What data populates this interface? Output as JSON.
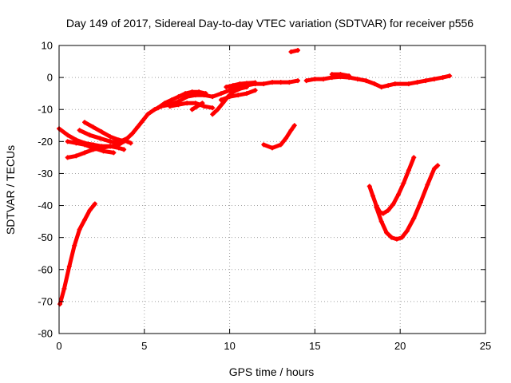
{
  "chart_data": {
    "type": "scatter",
    "title": "Day 149 of 2017, Sidereal Day-to-day VTEC variation (SDTVAR) for receiver p556",
    "xlabel": "GPS time / hours",
    "ylabel": "SDTVAR / TECUs",
    "xlim": [
      0,
      25
    ],
    "ylim": [
      -80,
      10
    ],
    "x_ticks": [
      0,
      5,
      10,
      15,
      20,
      25
    ],
    "y_ticks": [
      10,
      0,
      -10,
      -20,
      -30,
      -40,
      -50,
      -60,
      -70,
      -80
    ],
    "grid": true,
    "grid_style": "dotted",
    "legend": "none",
    "series": [
      {
        "color": "#ff0000",
        "segments": [
          [
            [
              0.05,
              -70.8
            ],
            [
              0.3,
              -66
            ],
            [
              0.6,
              -59
            ],
            [
              0.9,
              -52.5
            ],
            [
              1.2,
              -47.5
            ],
            [
              1.5,
              -44.5
            ],
            [
              1.8,
              -41.5
            ],
            [
              2.1,
              -39.5
            ]
          ],
          [
            [
              0.0,
              -16
            ],
            [
              0.5,
              -18
            ],
            [
              1.0,
              -19.5
            ],
            [
              1.5,
              -20.5
            ],
            [
              2.0,
              -21
            ],
            [
              2.5,
              -21.5
            ],
            [
              3.0,
              -21.5
            ],
            [
              3.5,
              -21
            ],
            [
              3.8,
              -20
            ]
          ],
          [
            [
              0.5,
              -20
            ],
            [
              1.0,
              -20.5
            ],
            [
              1.5,
              -21
            ],
            [
              2.0,
              -22
            ],
            [
              2.6,
              -23
            ],
            [
              3.2,
              -23.5
            ]
          ],
          [
            [
              0.5,
              -25
            ],
            [
              1.0,
              -24.5
            ],
            [
              1.5,
              -23.5
            ],
            [
              2.0,
              -22.5
            ],
            [
              2.5,
              -22
            ],
            [
              3.0,
              -21.5
            ],
            [
              3.5,
              -22
            ],
            [
              3.8,
              -22.5
            ]
          ],
          [
            [
              1.5,
              -14
            ],
            [
              2.0,
              -15.5
            ],
            [
              2.5,
              -17
            ],
            [
              3.0,
              -18.5
            ],
            [
              3.5,
              -19.5
            ],
            [
              4.0,
              -20
            ],
            [
              4.2,
              -20.5
            ]
          ],
          [
            [
              1.2,
              -16.5
            ],
            [
              1.8,
              -18
            ],
            [
              2.4,
              -19
            ],
            [
              3.0,
              -20
            ],
            [
              3.6,
              -20.5
            ]
          ],
          [
            [
              3.6,
              -20
            ],
            [
              4.0,
              -19
            ],
            [
              4.3,
              -17.5
            ],
            [
              4.6,
              -15.5
            ],
            [
              4.9,
              -13.5
            ],
            [
              5.2,
              -11.5
            ],
            [
              5.6,
              -10
            ],
            [
              6.0,
              -9
            ],
            [
              6.5,
              -8.5
            ],
            [
              7.0,
              -7.5
            ],
            [
              7.5,
              -6
            ],
            [
              8.0,
              -5.5
            ],
            [
              8.5,
              -5.5
            ],
            [
              9.0,
              -6
            ],
            [
              9.5,
              -5
            ],
            [
              10.0,
              -4
            ],
            [
              10.5,
              -3
            ],
            [
              11.0,
              -2.5
            ],
            [
              11.5,
              -2
            ],
            [
              12.0,
              -2
            ],
            [
              12.5,
              -1.5
            ],
            [
              13.0,
              -1.5
            ],
            [
              13.5,
              -1.5
            ],
            [
              14.0,
              -1
            ]
          ],
          [
            [
              5.8,
              -9.5
            ],
            [
              6.2,
              -8
            ],
            [
              6.6,
              -7
            ],
            [
              7.0,
              -6
            ],
            [
              7.4,
              -5
            ],
            [
              7.8,
              -4.5
            ],
            [
              8.2,
              -4.5
            ],
            [
              8.6,
              -5
            ]
          ],
          [
            [
              6.5,
              -9
            ],
            [
              7.0,
              -8.5
            ],
            [
              7.5,
              -8
            ],
            [
              8.0,
              -8
            ],
            [
              8.5,
              -9
            ],
            [
              9.0,
              -9.5
            ]
          ],
          [
            [
              7.8,
              -10
            ],
            [
              8.1,
              -9
            ],
            [
              8.4,
              -8
            ]
          ],
          [
            [
              9.0,
              -11.5
            ],
            [
              9.3,
              -10
            ],
            [
              9.6,
              -8
            ],
            [
              9.9,
              -6
            ],
            [
              10.2,
              -4.5
            ],
            [
              10.6,
              -3.5
            ],
            [
              11.0,
              -3
            ]
          ],
          [
            [
              9.5,
              -7
            ],
            [
              10.0,
              -6
            ],
            [
              10.5,
              -5.5
            ],
            [
              11.0,
              -5
            ],
            [
              11.5,
              -4
            ]
          ],
          [
            [
              9.8,
              -3
            ],
            [
              10.2,
              -2.5
            ],
            [
              10.6,
              -2
            ],
            [
              11.0,
              -1.8
            ],
            [
              11.5,
              -1.6
            ]
          ],
          [
            [
              12.0,
              -21
            ],
            [
              12.5,
              -22
            ],
            [
              13.0,
              -21
            ],
            [
              13.3,
              -19
            ],
            [
              13.6,
              -16.5
            ],
            [
              13.8,
              -15
            ]
          ],
          [
            [
              13.6,
              8
            ],
            [
              14.0,
              8.5
            ]
          ],
          [
            [
              14.5,
              -1
            ],
            [
              15.0,
              -0.5
            ],
            [
              15.5,
              -0.5
            ],
            [
              16.0,
              0
            ],
            [
              16.5,
              0.2
            ],
            [
              17.0,
              0
            ],
            [
              17.5,
              -0.5
            ],
            [
              18.0,
              -1
            ],
            [
              18.5,
              -2
            ],
            [
              18.9,
              -3
            ],
            [
              19.3,
              -2.5
            ],
            [
              19.7,
              -2
            ],
            [
              20.5,
              -2
            ],
            [
              21.0,
              -1.5
            ],
            [
              21.5,
              -1
            ],
            [
              22.0,
              -0.5
            ],
            [
              22.5,
              0
            ],
            [
              22.9,
              0.5
            ]
          ],
          [
            [
              16.0,
              1
            ],
            [
              16.5,
              1
            ],
            [
              17.0,
              0.5
            ]
          ],
          [
            [
              18.2,
              -34
            ],
            [
              18.4,
              -37
            ],
            [
              18.6,
              -40
            ],
            [
              18.8,
              -42
            ],
            [
              19.0,
              -42.5
            ],
            [
              19.3,
              -41.5
            ],
            [
              19.6,
              -39.5
            ],
            [
              19.9,
              -36.5
            ],
            [
              20.2,
              -33
            ],
            [
              20.5,
              -29
            ],
            [
              20.8,
              -25
            ]
          ],
          [
            [
              18.6,
              -40.5
            ],
            [
              18.9,
              -45
            ],
            [
              19.2,
              -48.5
            ],
            [
              19.5,
              -50
            ],
            [
              19.8,
              -50.5
            ],
            [
              20.1,
              -50
            ],
            [
              20.4,
              -48
            ],
            [
              20.8,
              -44
            ],
            [
              21.2,
              -39
            ],
            [
              21.6,
              -33.5
            ],
            [
              22.0,
              -28.5
            ],
            [
              22.2,
              -27.5
            ]
          ]
        ]
      }
    ]
  }
}
